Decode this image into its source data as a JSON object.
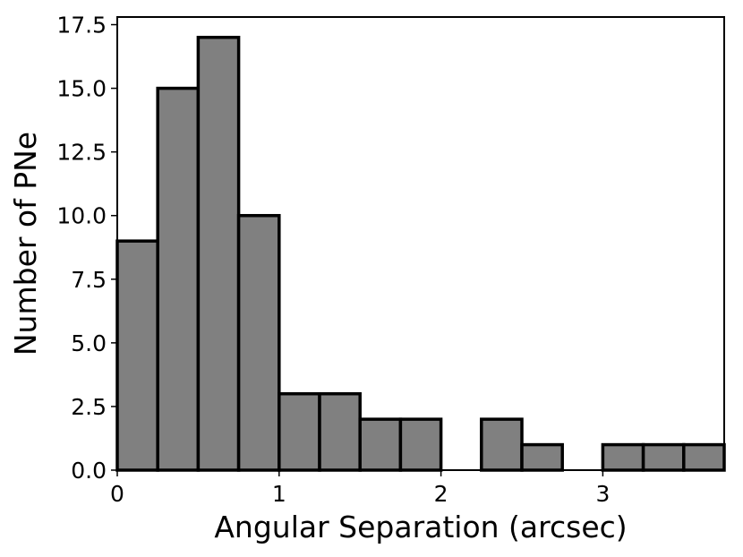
{
  "chart_data": {
    "type": "bar",
    "subtype": "histogram",
    "xlabel": "Angular Separation (arcsec)",
    "ylabel": "Number of PNe",
    "xlim": [
      0,
      3.75
    ],
    "ylim": [
      0,
      17.8
    ],
    "bin_width": 0.25,
    "bins": [
      {
        "x0": 0.0,
        "x1": 0.25,
        "count": 9
      },
      {
        "x0": 0.25,
        "x1": 0.5,
        "count": 15
      },
      {
        "x0": 0.5,
        "x1": 0.75,
        "count": 17
      },
      {
        "x0": 0.75,
        "x1": 1.0,
        "count": 10
      },
      {
        "x0": 1.0,
        "x1": 1.25,
        "count": 3
      },
      {
        "x0": 1.25,
        "x1": 1.5,
        "count": 3
      },
      {
        "x0": 1.5,
        "x1": 1.75,
        "count": 2
      },
      {
        "x0": 1.75,
        "x1": 2.0,
        "count": 2
      },
      {
        "x0": 2.0,
        "x1": 2.25,
        "count": 0
      },
      {
        "x0": 2.25,
        "x1": 2.5,
        "count": 2
      },
      {
        "x0": 2.5,
        "x1": 2.75,
        "count": 1
      },
      {
        "x0": 2.75,
        "x1": 3.0,
        "count": 0
      },
      {
        "x0": 3.0,
        "x1": 3.25,
        "count": 1
      },
      {
        "x0": 3.25,
        "x1": 3.5,
        "count": 1
      },
      {
        "x0": 3.5,
        "x1": 3.75,
        "count": 1
      }
    ],
    "xticks": [
      {
        "value": 0,
        "label": "0"
      },
      {
        "value": 1,
        "label": "1"
      },
      {
        "value": 2,
        "label": "2"
      },
      {
        "value": 3,
        "label": "3"
      }
    ],
    "yticks": [
      {
        "value": 0,
        "label": "0.0"
      },
      {
        "value": 2.5,
        "label": "2.5"
      },
      {
        "value": 5,
        "label": "5.0"
      },
      {
        "value": 7.5,
        "label": "7.5"
      },
      {
        "value": 10,
        "label": "10.0"
      },
      {
        "value": 12.5,
        "label": "12.5"
      },
      {
        "value": 15,
        "label": "15.0"
      },
      {
        "value": 17.5,
        "label": "17.5"
      }
    ],
    "grid": false,
    "legend": false,
    "colors": {
      "bar_fill": "#808080",
      "bar_edge": "#000000"
    }
  }
}
